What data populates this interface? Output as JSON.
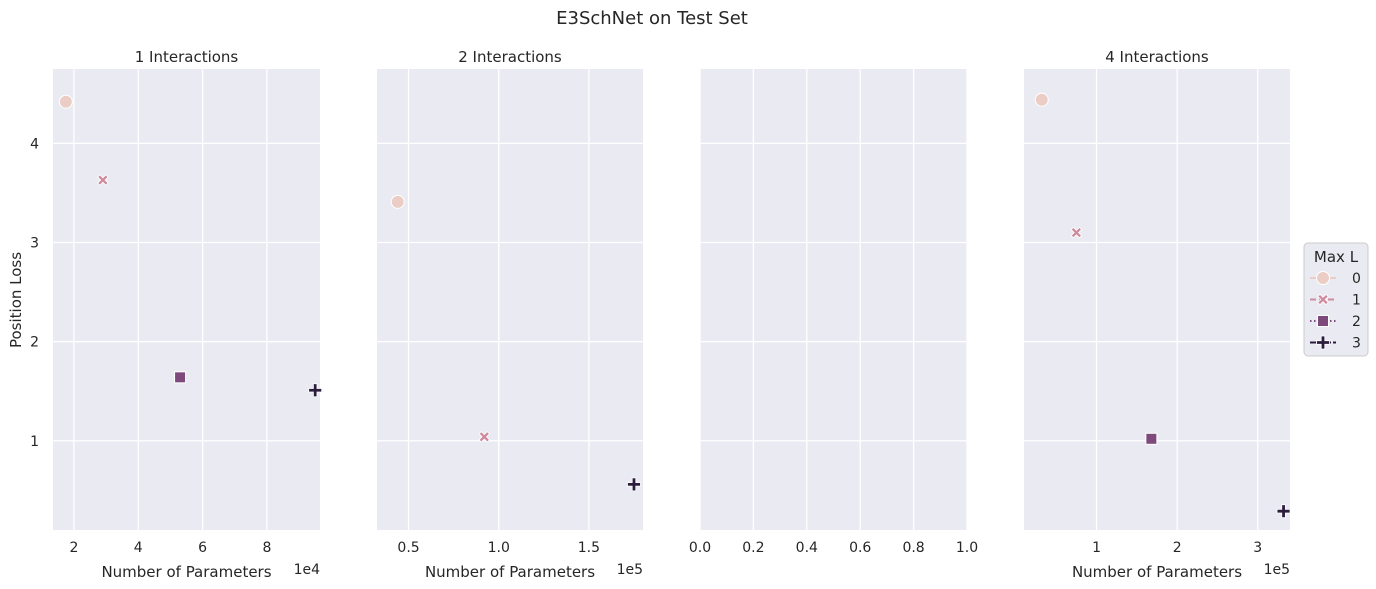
{
  "figure": {
    "title": "E3SchNet on Test Set",
    "ylabel": "Position Loss"
  },
  "chart_data": [
    {
      "type": "scatter",
      "title": "1 Interactions",
      "xlabel": "Number of Parameters",
      "x_offset_label": "1e4",
      "xlim": [
        1.35,
        9.65
      ],
      "ylim": [
        0.1,
        4.75
      ],
      "xticks": [
        2,
        4,
        6,
        8
      ],
      "xtick_labels": [
        "2",
        "4",
        "6",
        "8"
      ],
      "yticks": [
        1,
        2,
        3,
        4
      ],
      "ytick_labels": [
        "1",
        "2",
        "3",
        "4"
      ],
      "show_yticklabels": true,
      "points": [
        {
          "x": 1.75,
          "y": 4.42,
          "max_l": "0"
        },
        {
          "x": 2.9,
          "y": 3.63,
          "max_l": "1"
        },
        {
          "x": 5.3,
          "y": 1.64,
          "max_l": "2"
        },
        {
          "x": 9.5,
          "y": 1.51,
          "max_l": "3"
        }
      ]
    },
    {
      "type": "scatter",
      "title": "2 Interactions",
      "xlabel": "Number of Parameters",
      "x_offset_label": "1e5",
      "xlim": [
        0.325,
        1.8
      ],
      "ylim": [
        0.1,
        4.75
      ],
      "xticks": [
        0.5,
        1.0,
        1.5
      ],
      "xtick_labels": [
        "0.5",
        "1.0",
        "1.5"
      ],
      "yticks": [
        1,
        2,
        3,
        4
      ],
      "ytick_labels": [
        "1",
        "2",
        "3",
        "4"
      ],
      "show_yticklabels": false,
      "points": [
        {
          "x": 0.44,
          "y": 3.41,
          "max_l": "0"
        },
        {
          "x": 0.92,
          "y": 1.04,
          "max_l": "1"
        },
        {
          "x": 1.75,
          "y": 0.56,
          "max_l": "3"
        }
      ]
    },
    {
      "type": "scatter",
      "title": "",
      "xlabel": "",
      "x_offset_label": "",
      "xlim": [
        0.0,
        1.0
      ],
      "ylim": [
        0.1,
        4.75
      ],
      "xticks": [
        0.0,
        0.2,
        0.4,
        0.6,
        0.8,
        1.0
      ],
      "xtick_labels": [
        "0.0",
        "0.2",
        "0.4",
        "0.6",
        "0.8",
        "1.0"
      ],
      "yticks": [
        1,
        2,
        3,
        4
      ],
      "ytick_labels": [
        "1",
        "2",
        "3",
        "4"
      ],
      "show_yticklabels": false,
      "points": []
    },
    {
      "type": "scatter",
      "title": "4 Interactions",
      "xlabel": "Number of Parameters",
      "x_offset_label": "1e5",
      "xlim": [
        0.1,
        3.4
      ],
      "ylim": [
        0.1,
        4.75
      ],
      "xticks": [
        1,
        2,
        3
      ],
      "xtick_labels": [
        "1",
        "2",
        "3"
      ],
      "yticks": [
        1,
        2,
        3,
        4
      ],
      "ytick_labels": [
        "1",
        "2",
        "3",
        "4"
      ],
      "show_yticklabels": false,
      "points": [
        {
          "x": 0.32,
          "y": 4.44,
          "max_l": "0"
        },
        {
          "x": 0.75,
          "y": 3.1,
          "max_l": "1"
        },
        {
          "x": 1.68,
          "y": 1.02,
          "max_l": "2"
        },
        {
          "x": 3.32,
          "y": 0.29,
          "max_l": "3"
        }
      ]
    }
  ],
  "legend": {
    "title": "Max L",
    "placement": "right",
    "entries": [
      {
        "label": "0",
        "color": "#ebcdc6",
        "marker": "circle",
        "dash": "solid"
      },
      {
        "label": "1",
        "color": "#cf8b9d",
        "marker": "x",
        "dash": "dashed"
      },
      {
        "label": "2",
        "color": "#7e4a7b",
        "marker": "square",
        "dash": "dotted"
      },
      {
        "label": "3",
        "color": "#2d1d3d",
        "marker": "plus",
        "dash": "dashdot"
      }
    ]
  },
  "style": {
    "axes_bg": "#eaeaf2",
    "grid": "#ffffff",
    "text": "#262626",
    "legend_frame": "#cccccc"
  }
}
